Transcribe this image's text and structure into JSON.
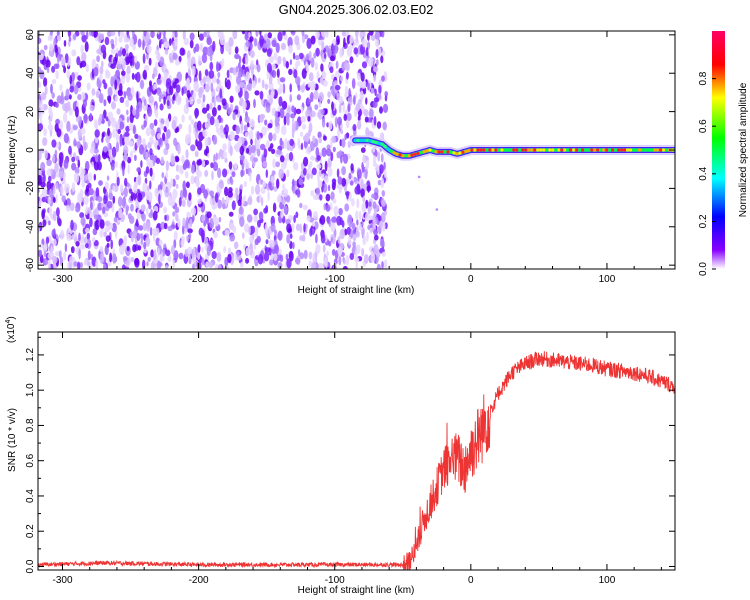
{
  "figure": {
    "title": "GN04.2025.306.02.03.E02"
  },
  "chart_data": [
    {
      "type": "heatmap",
      "xlabel": "Height of straight line (km)",
      "ylabel": "Frequency (Hz)",
      "xlim": [
        -318,
        150
      ],
      "ylim": [
        -62,
        62
      ],
      "x_ticks": [
        -300,
        -200,
        -100,
        0,
        100
      ],
      "x_tick_labels": [
        "-300",
        "-200",
        "-100",
        "0",
        "100"
      ],
      "y_ticks": [
        -60,
        -40,
        -20,
        0,
        20,
        40,
        60
      ],
      "y_tick_labels": [
        "-60",
        "-40",
        "-20",
        "0",
        "20",
        "40",
        "60"
      ],
      "noise_region_x": [
        -318,
        -65
      ],
      "signal_trace": {
        "x": [
          -85,
          -75,
          -65,
          -60,
          -55,
          -50,
          -45,
          -40,
          -35,
          -30,
          -25,
          -20,
          -15,
          -10,
          -5,
          0,
          20,
          40,
          60,
          80,
          100,
          120,
          150
        ],
        "y": [
          5,
          5,
          3,
          0,
          -2,
          -3,
          -3,
          -2,
          -1,
          0,
          -1,
          -1,
          -1,
          -2,
          -1,
          0,
          0,
          0,
          0,
          0,
          0,
          0,
          0
        ]
      },
      "colorbar": {
        "label": "Normalized spectral amplitude",
        "range": [
          0,
          1
        ],
        "ticks": [
          0.0,
          0.2,
          0.4,
          0.6,
          0.8
        ],
        "tick_labels": [
          "0.0",
          "0.2",
          "0.4",
          "0.6",
          "0.8"
        ],
        "colors": [
          "#ffffff",
          "#7700ff",
          "#0000ff",
          "#00ffff",
          "#00ff00",
          "#ffff00",
          "#ff0000",
          "#ff0066"
        ]
      }
    },
    {
      "type": "line",
      "xlabel": "Height of straight line (km)",
      "ylabel": "SNR (10 * v/v)",
      "y_multiplier": "(x10",
      "y_multiplier_exp": "4",
      "y_multiplier_close": ")",
      "xlim": [
        -318,
        150
      ],
      "ylim": [
        -0.02,
        1.33
      ],
      "x_ticks": [
        -300,
        -200,
        -100,
        0,
        100
      ],
      "x_tick_labels": [
        "-300",
        "-200",
        "-100",
        "0",
        "100"
      ],
      "y_ticks": [
        0.0,
        0.2,
        0.4,
        0.6,
        0.8,
        1.0,
        1.2
      ],
      "y_tick_labels": [
        "0.0",
        "0.2",
        "0.4",
        "0.6",
        "0.8",
        "1.0",
        "1.2"
      ],
      "series": [
        {
          "color": "#ee3333",
          "x": [
            -318,
            -270,
            -200,
            -100,
            -60,
            -50,
            -45,
            -40,
            -35,
            -30,
            -25,
            -20,
            -15,
            -10,
            -5,
            0,
            10,
            20,
            30,
            40,
            50,
            60,
            70,
            80,
            90,
            100,
            110,
            120,
            130,
            140,
            150
          ],
          "y": [
            0.01,
            0.02,
            0.01,
            0.01,
            0.01,
            0.01,
            0.03,
            0.1,
            0.25,
            0.35,
            0.45,
            0.55,
            0.6,
            0.62,
            0.55,
            0.65,
            0.8,
            0.98,
            1.1,
            1.15,
            1.18,
            1.17,
            1.16,
            1.15,
            1.14,
            1.12,
            1.11,
            1.1,
            1.08,
            1.05,
            1.02
          ]
        }
      ]
    }
  ]
}
